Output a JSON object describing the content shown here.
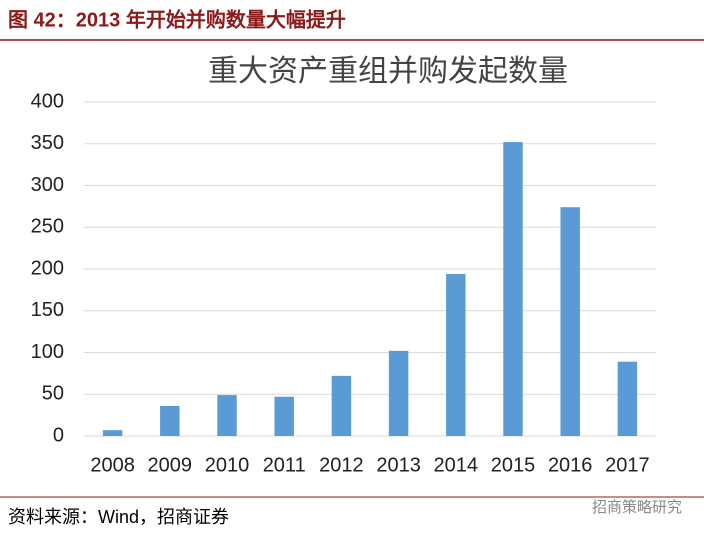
{
  "figure": {
    "caption": "图 42：2013 年开始并购数量大幅提升",
    "source": "资料来源：Wind，招商证券",
    "watermark": "招商策略研究"
  },
  "chart_data": {
    "type": "bar",
    "title": "重大资产重组并购发起数量",
    "categories": [
      "2008",
      "2009",
      "2010",
      "2011",
      "2012",
      "2013",
      "2014",
      "2015",
      "2016",
      "2017"
    ],
    "values": [
      7,
      36,
      49,
      47,
      72,
      102,
      194,
      352,
      274,
      89
    ],
    "color": "#5b9bd5",
    "ylim": [
      0,
      400
    ],
    "yticks": [
      0,
      50,
      100,
      150,
      200,
      250,
      300,
      350,
      400
    ],
    "grid": true
  }
}
